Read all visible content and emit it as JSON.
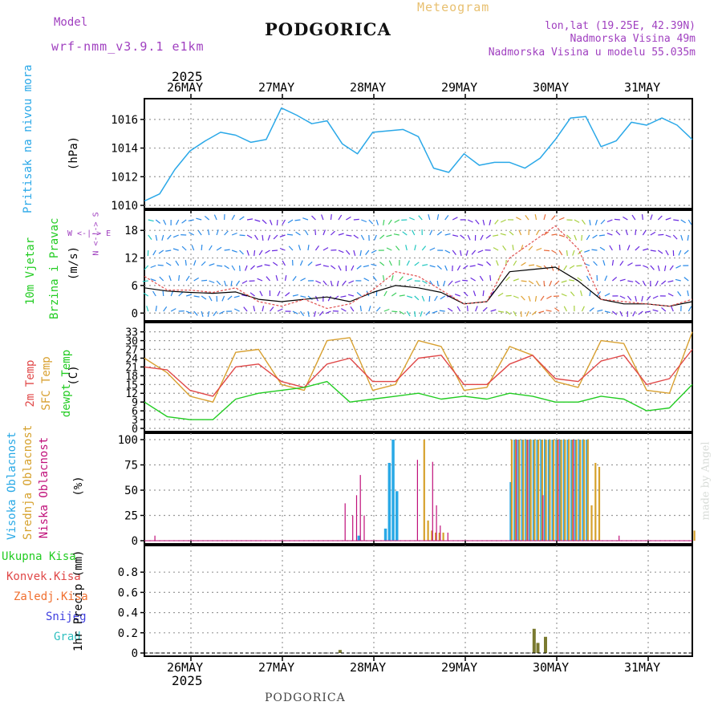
{
  "header": {
    "title": "PODGORICA",
    "subtitle": "Meteogram",
    "model_label": "Model",
    "model_name": "wrf-nmm_v3.9.1 e1km",
    "coords": "lon,lat (19.25E, 42.39N)",
    "elevation": "Nadmorska Visina 49m",
    "model_elevation": "Nadmorska Visina u modelu 55.035m"
  },
  "footer": {
    "location": "PODGORICA",
    "credit": "made by Angel"
  },
  "colors": {
    "pressure": "#2aa8e8",
    "temp": "#e04848",
    "sfc": "#d8a030",
    "dew": "#22cc22",
    "wind_black": "#000000",
    "wind_gust": "#e05050",
    "high": "#29a9e6",
    "mid": "#d6a12c",
    "low": "#c0107a",
    "compass": "#a040c0"
  },
  "chart_data": [
    {
      "type": "line",
      "panel": "pressure",
      "title": "",
      "ylabel_primary": "Pritisak na nivou mora",
      "ylabel_unit": "(hPa)",
      "ylim": [
        1010,
        1017
      ],
      "yticks": [
        "1010",
        "1012",
        "1014",
        "1016"
      ],
      "xlabels_top": [
        "26MAY",
        "27MAY",
        "28MAY",
        "29MAY",
        "30MAY",
        "31MAY"
      ],
      "year_label": "2025",
      "grid": true,
      "series": [
        {
          "x": [
            0,
            4,
            8,
            12,
            16,
            20,
            24,
            28,
            32,
            36,
            40,
            44,
            48,
            52,
            56,
            60,
            64,
            68,
            72,
            76,
            80,
            84,
            88,
            92,
            96,
            100,
            104,
            108,
            112,
            116,
            120,
            124,
            128,
            132,
            136,
            140,
            144
          ],
          "values": [
            1010.3,
            1010.8,
            1012.5,
            1013.8,
            1014.5,
            1015.1,
            1014.9,
            1014.4,
            1014.6,
            1016.8,
            1016.3,
            1015.7,
            1015.9,
            1014.3,
            1013.6,
            1015.1,
            1015.2,
            1015.3,
            1014.8,
            1012.6,
            1012.3,
            1013.6,
            1012.8,
            1013.0,
            1013.0,
            1012.6,
            1013.3,
            1014.6,
            1016.1,
            1016.2,
            1014.1,
            1014.5,
            1015.8,
            1015.6,
            1016.1,
            1015.6,
            1014.6
          ]
        }
      ]
    },
    {
      "type": "line",
      "panel": "wind",
      "ylabel_primary": "10m Vjetar",
      "ylabel_secondary": "Brzina i Pravac",
      "ylabel_unit": "(m/s)",
      "compass_label": "W <-|-> E",
      "compass_vert": "N <-|-> S",
      "ylim": [
        -1,
        21
      ],
      "yticks": [
        "0",
        "6",
        "12",
        "18"
      ],
      "grid": true,
      "series": [
        {
          "x": [
            0,
            6,
            12,
            18,
            24,
            30,
            36,
            42,
            48,
            54,
            60,
            66,
            72,
            78,
            84,
            90,
            96,
            102,
            108,
            114,
            120,
            126,
            132,
            138,
            144
          ],
          "values": [
            5.5,
            4.8,
            4.5,
            4.3,
            4.6,
            3.0,
            2.5,
            3.0,
            3.5,
            2.5,
            4.5,
            6.0,
            5.5,
            4.5,
            2.0,
            2.5,
            9.0,
            9.5,
            10.0,
            7.0,
            3.0,
            2.0,
            2.0,
            1.5,
            2.5
          ]
        },
        {
          "x": [
            0,
            6,
            12,
            18,
            24,
            30,
            36,
            42,
            48,
            54,
            60,
            66,
            72,
            78,
            84,
            90,
            96,
            102,
            108,
            114,
            120,
            126,
            132,
            138,
            144
          ],
          "values": [
            8.0,
            5.0,
            5.0,
            4.5,
            5.5,
            2.5,
            1.5,
            3.0,
            1.0,
            2.0,
            5.0,
            9.0,
            8.0,
            5.0,
            2.0,
            2.5,
            12.0,
            15.5,
            19.0,
            14.0,
            3.0,
            2.5,
            2.0,
            1.5,
            3.0
          ]
        }
      ]
    },
    {
      "type": "line",
      "panel": "temperature",
      "ylabel_primary": "2m Temp",
      "ylabel_secondary": "SFC Temp",
      "ylabel_tertiary": "dewpt Temp",
      "ylabel_unit": "(C)",
      "ylim": [
        0,
        34
      ],
      "yticks": [
        "0",
        "3",
        "6",
        "9",
        "12",
        "15",
        "18",
        "21",
        "24",
        "27",
        "30",
        "33"
      ],
      "grid": true,
      "series": [
        {
          "x": [
            0,
            6,
            12,
            18,
            24,
            30,
            36,
            42,
            48,
            54,
            60,
            66,
            72,
            78,
            84,
            90,
            96,
            102,
            108,
            114,
            120,
            126,
            132,
            138,
            144
          ],
          "values": [
            21,
            20,
            13,
            11,
            21,
            22,
            16,
            14,
            22,
            24,
            16,
            16,
            24,
            25,
            15,
            15,
            22,
            25,
            17,
            16,
            23,
            25,
            15,
            17,
            27
          ]
        },
        {
          "x": [
            0,
            6,
            12,
            18,
            24,
            30,
            36,
            42,
            48,
            54,
            60,
            66,
            72,
            78,
            84,
            90,
            96,
            102,
            108,
            114,
            120,
            126,
            132,
            138,
            144
          ],
          "values": [
            24,
            19,
            11,
            9,
            26,
            27,
            15,
            13,
            30,
            31,
            13,
            15,
            30,
            28,
            13,
            14,
            28,
            25,
            16,
            14,
            30,
            29,
            13,
            12,
            33
          ]
        },
        {
          "x": [
            0,
            6,
            12,
            18,
            24,
            30,
            36,
            42,
            48,
            54,
            60,
            66,
            72,
            78,
            84,
            90,
            96,
            102,
            108,
            114,
            120,
            126,
            132,
            138,
            144
          ],
          "values": [
            9,
            4,
            3,
            3,
            10,
            12,
            13,
            14,
            16,
            9,
            10,
            11,
            12,
            10,
            11,
            10,
            12,
            11,
            9,
            9,
            11,
            10,
            6,
            7,
            15
          ]
        }
      ]
    },
    {
      "type": "bar",
      "panel": "cloud",
      "ylabel_primary": "Visoka Oblacnost",
      "ylabel_secondary": "Srednja Oblacnost",
      "ylabel_tertiary": "Niska Oblacnost",
      "ylabel_unit": "(%)",
      "ylim": [
        0,
        100
      ],
      "yticks": [
        "0",
        "25",
        "50",
        "75",
        "100"
      ],
      "grid": true,
      "series": [
        {
          "x": [
            56,
            63,
            64,
            65,
            66,
            96,
            97,
            98,
            99,
            100,
            101,
            102,
            103,
            104,
            105,
            106,
            107,
            108,
            109,
            110,
            111,
            112,
            113,
            114,
            115,
            116
          ],
          "values": [
            5,
            12,
            77,
            100,
            49,
            58,
            100,
            100,
            100,
            100,
            100,
            100,
            100,
            100,
            100,
            100,
            100,
            100,
            100,
            100,
            100,
            100,
            100,
            100,
            100,
            100
          ]
        },
        {
          "x": [
            73,
            74,
            75,
            76,
            77,
            78,
            96,
            97,
            98,
            99,
            100,
            101,
            102,
            103,
            104,
            105,
            106,
            107,
            108,
            109,
            110,
            111,
            112,
            113,
            114,
            115,
            116,
            117,
            118,
            119,
            144
          ],
          "values": [
            100,
            20,
            10,
            8,
            8,
            8,
            100,
            100,
            100,
            100,
            100,
            100,
            100,
            100,
            100,
            100,
            100,
            100,
            100,
            100,
            100,
            100,
            100,
            100,
            100,
            100,
            100,
            35,
            77,
            73,
            10
          ]
        },
        {
          "x": [
            2,
            52,
            54,
            55,
            56,
            57,
            71,
            75,
            76,
            77,
            79,
            97,
            100,
            104,
            108,
            112,
            124
          ],
          "values": [
            5,
            37,
            25,
            45,
            65,
            25,
            80,
            78,
            35,
            15,
            8,
            100,
            100,
            45,
            100,
            100,
            5
          ]
        }
      ]
    },
    {
      "type": "bar",
      "panel": "precip",
      "ylabel_primary": "1hr Precip (mm)",
      "legend": [
        "Ukupna Kisa",
        "Konvek.Kisa",
        "Zaledj.Kisa",
        "Snijeg",
        "Grad"
      ],
      "ylim": [
        0,
        1
      ],
      "yticks": [
        "0",
        "0.2",
        "0.4",
        "0.6",
        "0.8"
      ],
      "xlabels_bottom": [
        "26MAY",
        "27MAY",
        "28MAY",
        "29MAY",
        "30MAY",
        "31MAY"
      ],
      "year_label": "2025",
      "grid": true,
      "series": [
        {
          "x": [
            51,
            102,
            103,
            105
          ],
          "values": [
            0.03,
            0.24,
            0.1,
            0.16
          ]
        }
      ]
    }
  ]
}
